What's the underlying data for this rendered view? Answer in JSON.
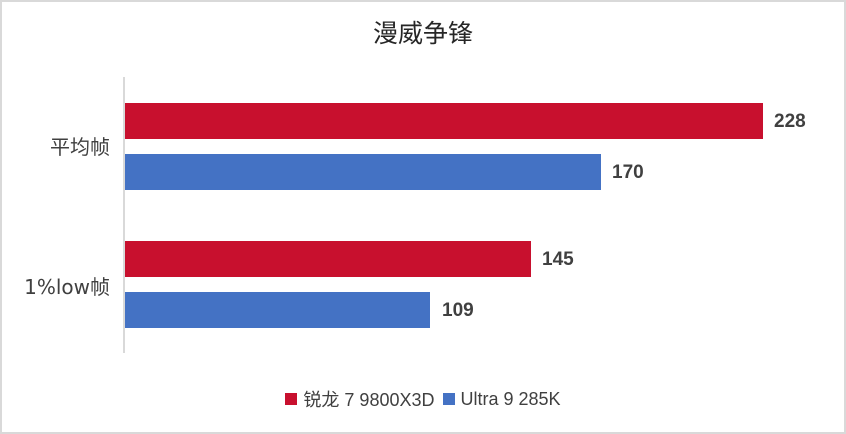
{
  "chart_data": {
    "type": "bar",
    "orientation": "horizontal",
    "title": "漫威争锋",
    "categories": [
      "平均帧",
      "1%low帧"
    ],
    "series": [
      {
        "name": "锐龙 7 9800X3D",
        "color": "#C8102E",
        "values": [
          228,
          145
        ]
      },
      {
        "name": "Ultra 9 285K",
        "color": "#4472C4",
        "values": [
          170,
          109
        ]
      }
    ],
    "xlabel": "",
    "ylabel": "",
    "xlim": [
      0,
      240
    ],
    "grid": false,
    "data_labels": true,
    "legend_position": "bottom"
  },
  "title": "漫威争锋",
  "labels": {
    "cat0": "平均帧",
    "cat1": "1%low帧",
    "v00": "228",
    "v10": "170",
    "v01": "145",
    "v11": "109",
    "legend0": "锐龙 7 9800X3D",
    "legend1": "Ultra 9 285K"
  }
}
